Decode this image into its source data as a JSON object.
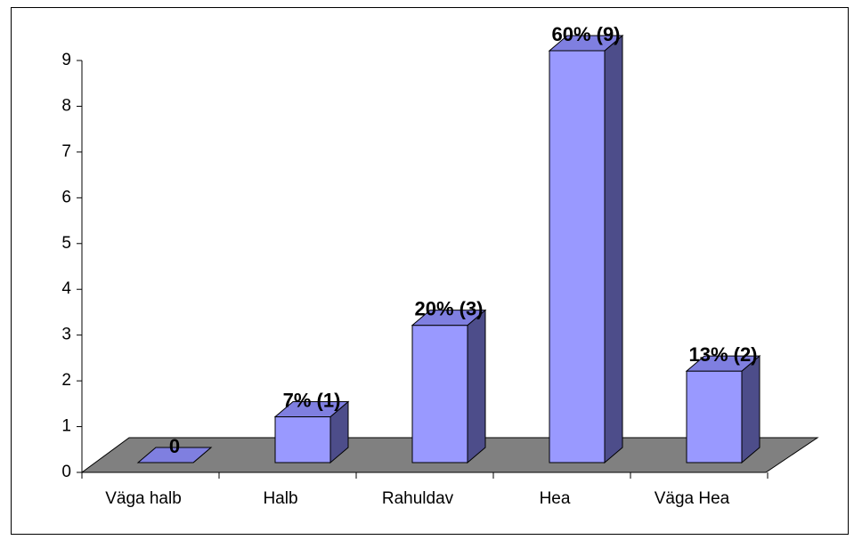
{
  "chart_data": {
    "type": "bar3d",
    "categories": [
      "Väga halb",
      "Halb",
      "Rahuldav",
      "Hea",
      "Väga Hea"
    ],
    "values": [
      0,
      1,
      3,
      9,
      2
    ],
    "value_labels": [
      "0",
      "7% (1)",
      "20% (3)",
      "60% (9)",
      "13% (2)"
    ],
    "color": "#9999ff",
    "ylim": [
      0,
      9
    ],
    "yticks": [
      0,
      1,
      2,
      3,
      4,
      5,
      6,
      7,
      8,
      9
    ]
  }
}
